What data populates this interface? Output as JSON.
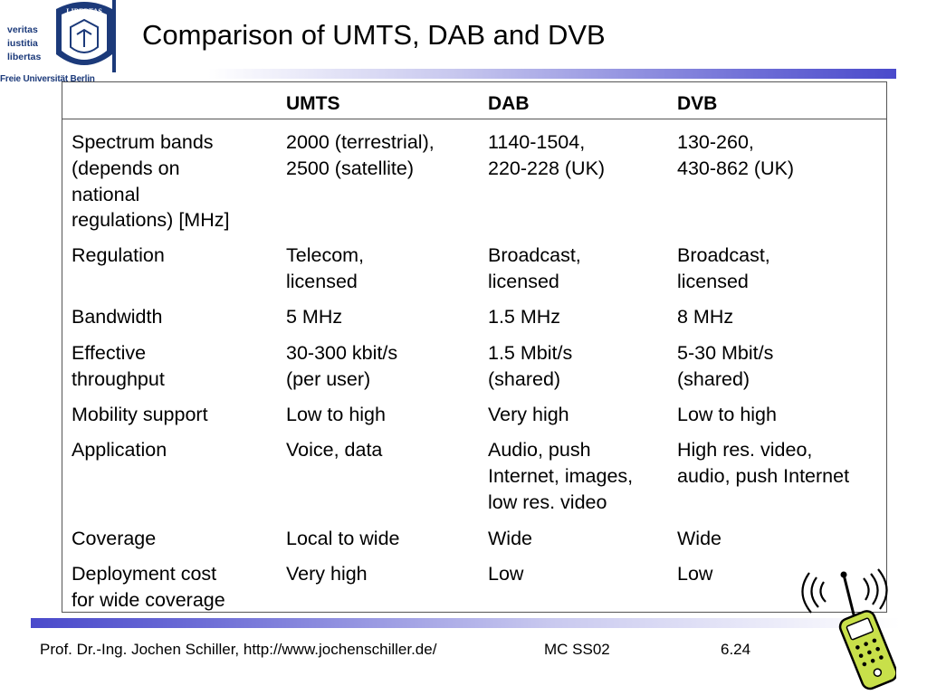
{
  "logo": {
    "motto": [
      "veritas",
      "iustitia",
      "libertas"
    ],
    "university": "Freie Universität Berlin"
  },
  "title": "Comparison of UMTS, DAB and DVB",
  "table": {
    "columns": [
      "",
      "UMTS",
      "DAB",
      "DVB"
    ],
    "rows": [
      {
        "label": "Spectrum bands\n(depends on\nnational\nregulations) [MHz]",
        "umts": "2000 (terrestrial),\n2500 (satellite)",
        "dab": "1140-1504,\n220-228 (UK)",
        "dvb": "130-260,\n430-862 (UK)"
      },
      {
        "label": "Regulation",
        "umts": "Telecom,\nlicensed",
        "dab": "Broadcast,\nlicensed",
        "dvb": "Broadcast,\nlicensed"
      },
      {
        "label": "Bandwidth",
        "umts": "5 MHz",
        "dab": "1.5 MHz",
        "dvb": "8 MHz"
      },
      {
        "label": "Effective\nthroughput",
        "umts": "30-300 kbit/s\n(per user)",
        "dab": "1.5 Mbit/s\n(shared)",
        "dvb": "5-30 Mbit/s\n(shared)"
      },
      {
        "label": "Mobility support",
        "umts": "Low to high",
        "dab": "Very high",
        "dvb": "Low to high"
      },
      {
        "label": "Application",
        "umts": "Voice, data",
        "dab": "Audio, push\nInternet, images,\nlow res. video",
        "dvb": "High res. video,\naudio, push Internet"
      },
      {
        "label": "Coverage",
        "umts": "Local to wide",
        "dab": "Wide",
        "dvb": "Wide"
      },
      {
        "label": "Deployment cost\nfor wide coverage",
        "umts": "Very high",
        "dab": "Low",
        "dvb": "Low"
      }
    ]
  },
  "footer": {
    "author": "Prof. Dr.-Ing. Jochen Schiller, http://www.jochenschiller.de/",
    "course": "MC SS02",
    "page": "6.24"
  },
  "colors": {
    "brand_blue": "#1c3a7a",
    "bar_blue": "#4a4acb",
    "phone_green": "#c8e04a"
  },
  "icons": [
    "university-seal-icon",
    "mobile-phone-icon"
  ]
}
